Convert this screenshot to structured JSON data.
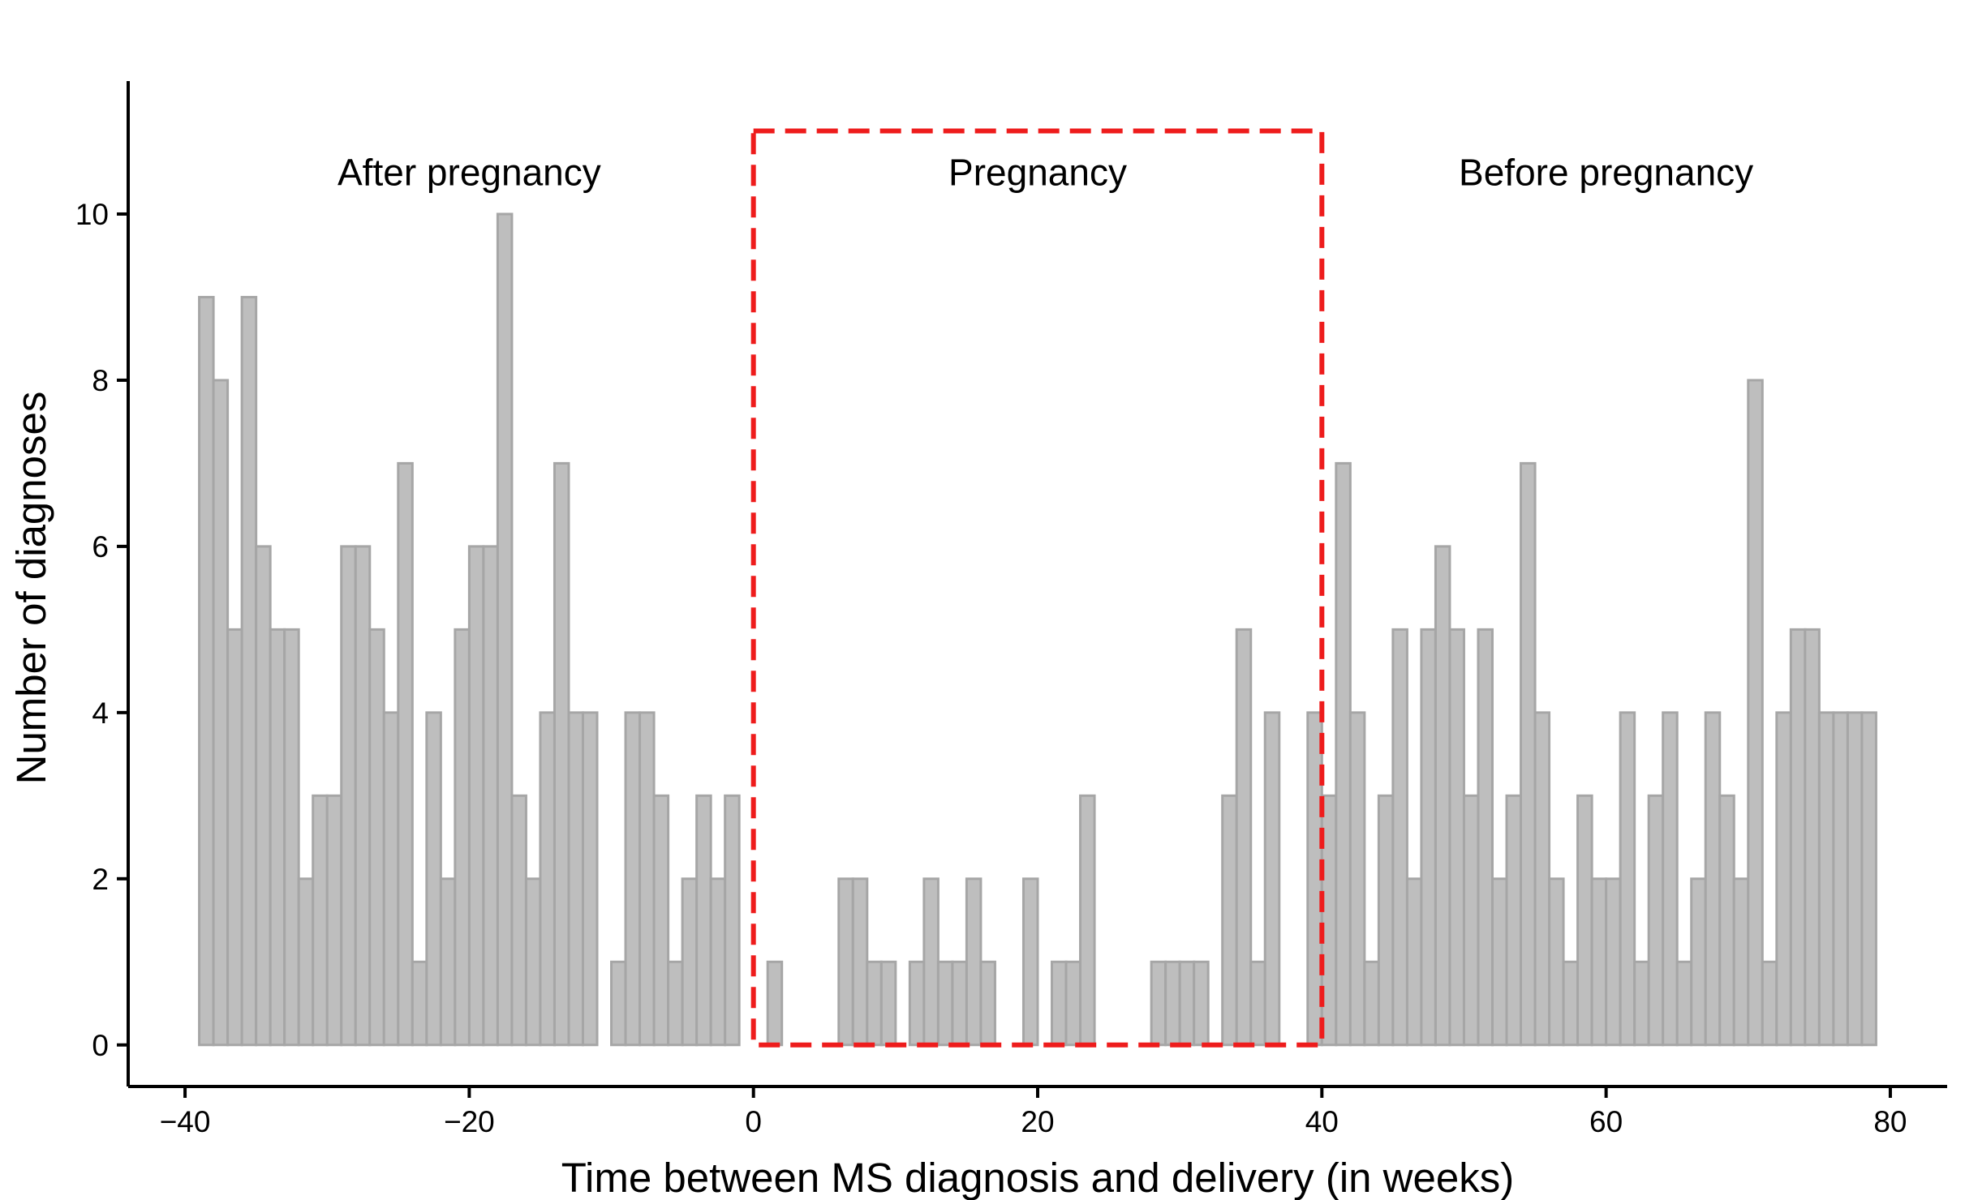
{
  "chart_data": {
    "type": "bar",
    "xlabel": "Time between MS diagnosis and delivery (in weeks)",
    "ylabel": "Number of diagnoses",
    "xlim": [
      -44,
      84
    ],
    "ylim": [
      -0.5,
      11.6
    ],
    "x_ticks": [
      -40,
      -20,
      0,
      20,
      40,
      60,
      80
    ],
    "y_ticks": [
      0,
      2,
      4,
      6,
      8,
      10
    ],
    "x_tick_labels": [
      "−40",
      "−20",
      "0",
      "20",
      "40",
      "60",
      "80"
    ],
    "y_tick_labels": [
      "0",
      "2",
      "4",
      "6",
      "8",
      "10"
    ],
    "grid": false,
    "bin_width": 1,
    "bins": [
      {
        "x": -39,
        "value": 9
      },
      {
        "x": -38,
        "value": 8
      },
      {
        "x": -37,
        "value": 5
      },
      {
        "x": -36,
        "value": 9
      },
      {
        "x": -35,
        "value": 6
      },
      {
        "x": -34,
        "value": 5
      },
      {
        "x": -33,
        "value": 5
      },
      {
        "x": -32,
        "value": 2
      },
      {
        "x": -31,
        "value": 3
      },
      {
        "x": -30,
        "value": 3
      },
      {
        "x": -29,
        "value": 6
      },
      {
        "x": -28,
        "value": 6
      },
      {
        "x": -27,
        "value": 5
      },
      {
        "x": -26,
        "value": 4
      },
      {
        "x": -25,
        "value": 7
      },
      {
        "x": -24,
        "value": 1
      },
      {
        "x": -23,
        "value": 4
      },
      {
        "x": -22,
        "value": 2
      },
      {
        "x": -21,
        "value": 5
      },
      {
        "x": -20,
        "value": 6
      },
      {
        "x": -19,
        "value": 6
      },
      {
        "x": -18,
        "value": 10
      },
      {
        "x": -17,
        "value": 3
      },
      {
        "x": -16,
        "value": 2
      },
      {
        "x": -15,
        "value": 4
      },
      {
        "x": -14,
        "value": 7
      },
      {
        "x": -13,
        "value": 4
      },
      {
        "x": -12,
        "value": 4
      },
      {
        "x": -10,
        "value": 1
      },
      {
        "x": -9,
        "value": 4
      },
      {
        "x": -8,
        "value": 4
      },
      {
        "x": -7,
        "value": 3
      },
      {
        "x": -6,
        "value": 1
      },
      {
        "x": -5,
        "value": 2
      },
      {
        "x": -4,
        "value": 3
      },
      {
        "x": -3,
        "value": 2
      },
      {
        "x": -2,
        "value": 3
      },
      {
        "x": 1,
        "value": 1
      },
      {
        "x": 6,
        "value": 2
      },
      {
        "x": 7,
        "value": 2
      },
      {
        "x": 8,
        "value": 1
      },
      {
        "x": 9,
        "value": 1
      },
      {
        "x": 11,
        "value": 1
      },
      {
        "x": 12,
        "value": 2
      },
      {
        "x": 13,
        "value": 1
      },
      {
        "x": 14,
        "value": 1
      },
      {
        "x": 15,
        "value": 2
      },
      {
        "x": 16,
        "value": 1
      },
      {
        "x": 19,
        "value": 2
      },
      {
        "x": 21,
        "value": 1
      },
      {
        "x": 22,
        "value": 1
      },
      {
        "x": 23,
        "value": 3
      },
      {
        "x": 28,
        "value": 1
      },
      {
        "x": 29,
        "value": 1
      },
      {
        "x": 30,
        "value": 1
      },
      {
        "x": 31,
        "value": 1
      },
      {
        "x": 33,
        "value": 3
      },
      {
        "x": 34,
        "value": 5
      },
      {
        "x": 35,
        "value": 1
      },
      {
        "x": 36,
        "value": 4
      },
      {
        "x": 39,
        "value": 4
      },
      {
        "x": 40,
        "value": 3
      },
      {
        "x": 41,
        "value": 7
      },
      {
        "x": 42,
        "value": 4
      },
      {
        "x": 43,
        "value": 1
      },
      {
        "x": 44,
        "value": 3
      },
      {
        "x": 45,
        "value": 5
      },
      {
        "x": 46,
        "value": 2
      },
      {
        "x": 47,
        "value": 5
      },
      {
        "x": 48,
        "value": 6
      },
      {
        "x": 49,
        "value": 5
      },
      {
        "x": 50,
        "value": 3
      },
      {
        "x": 51,
        "value": 5
      },
      {
        "x": 52,
        "value": 2
      },
      {
        "x": 53,
        "value": 3
      },
      {
        "x": 54,
        "value": 7
      },
      {
        "x": 55,
        "value": 4
      },
      {
        "x": 56,
        "value": 2
      },
      {
        "x": 57,
        "value": 1
      },
      {
        "x": 58,
        "value": 3
      },
      {
        "x": 59,
        "value": 2
      },
      {
        "x": 60,
        "value": 2
      },
      {
        "x": 61,
        "value": 4
      },
      {
        "x": 62,
        "value": 1
      },
      {
        "x": 63,
        "value": 3
      },
      {
        "x": 64,
        "value": 4
      },
      {
        "x": 65,
        "value": 1
      },
      {
        "x": 66,
        "value": 2
      },
      {
        "x": 67,
        "value": 4
      },
      {
        "x": 68,
        "value": 3
      },
      {
        "x": 69,
        "value": 2
      },
      {
        "x": 70,
        "value": 8
      },
      {
        "x": 71,
        "value": 1
      },
      {
        "x": 72,
        "value": 4
      },
      {
        "x": 73,
        "value": 5
      },
      {
        "x": 74,
        "value": 5
      },
      {
        "x": 75,
        "value": 4
      },
      {
        "x": 76,
        "value": 4
      },
      {
        "x": 77,
        "value": 4
      },
      {
        "x": 78,
        "value": 4
      }
    ],
    "annotations": [
      {
        "text": "After pregnancy",
        "x": -20,
        "y": 10.5
      },
      {
        "text": "Pregnancy",
        "x": 20,
        "y": 10.5
      },
      {
        "text": "Before pregnancy",
        "x": 60,
        "y": 10.5
      }
    ],
    "highlight_region": {
      "x_range": [
        0,
        40
      ],
      "y_range": [
        0,
        11
      ],
      "color": "#ee1c1c",
      "style": "dashed"
    },
    "colors": {
      "bar_fill": "#bebebe",
      "bar_stroke": "#a6a6a6"
    }
  }
}
